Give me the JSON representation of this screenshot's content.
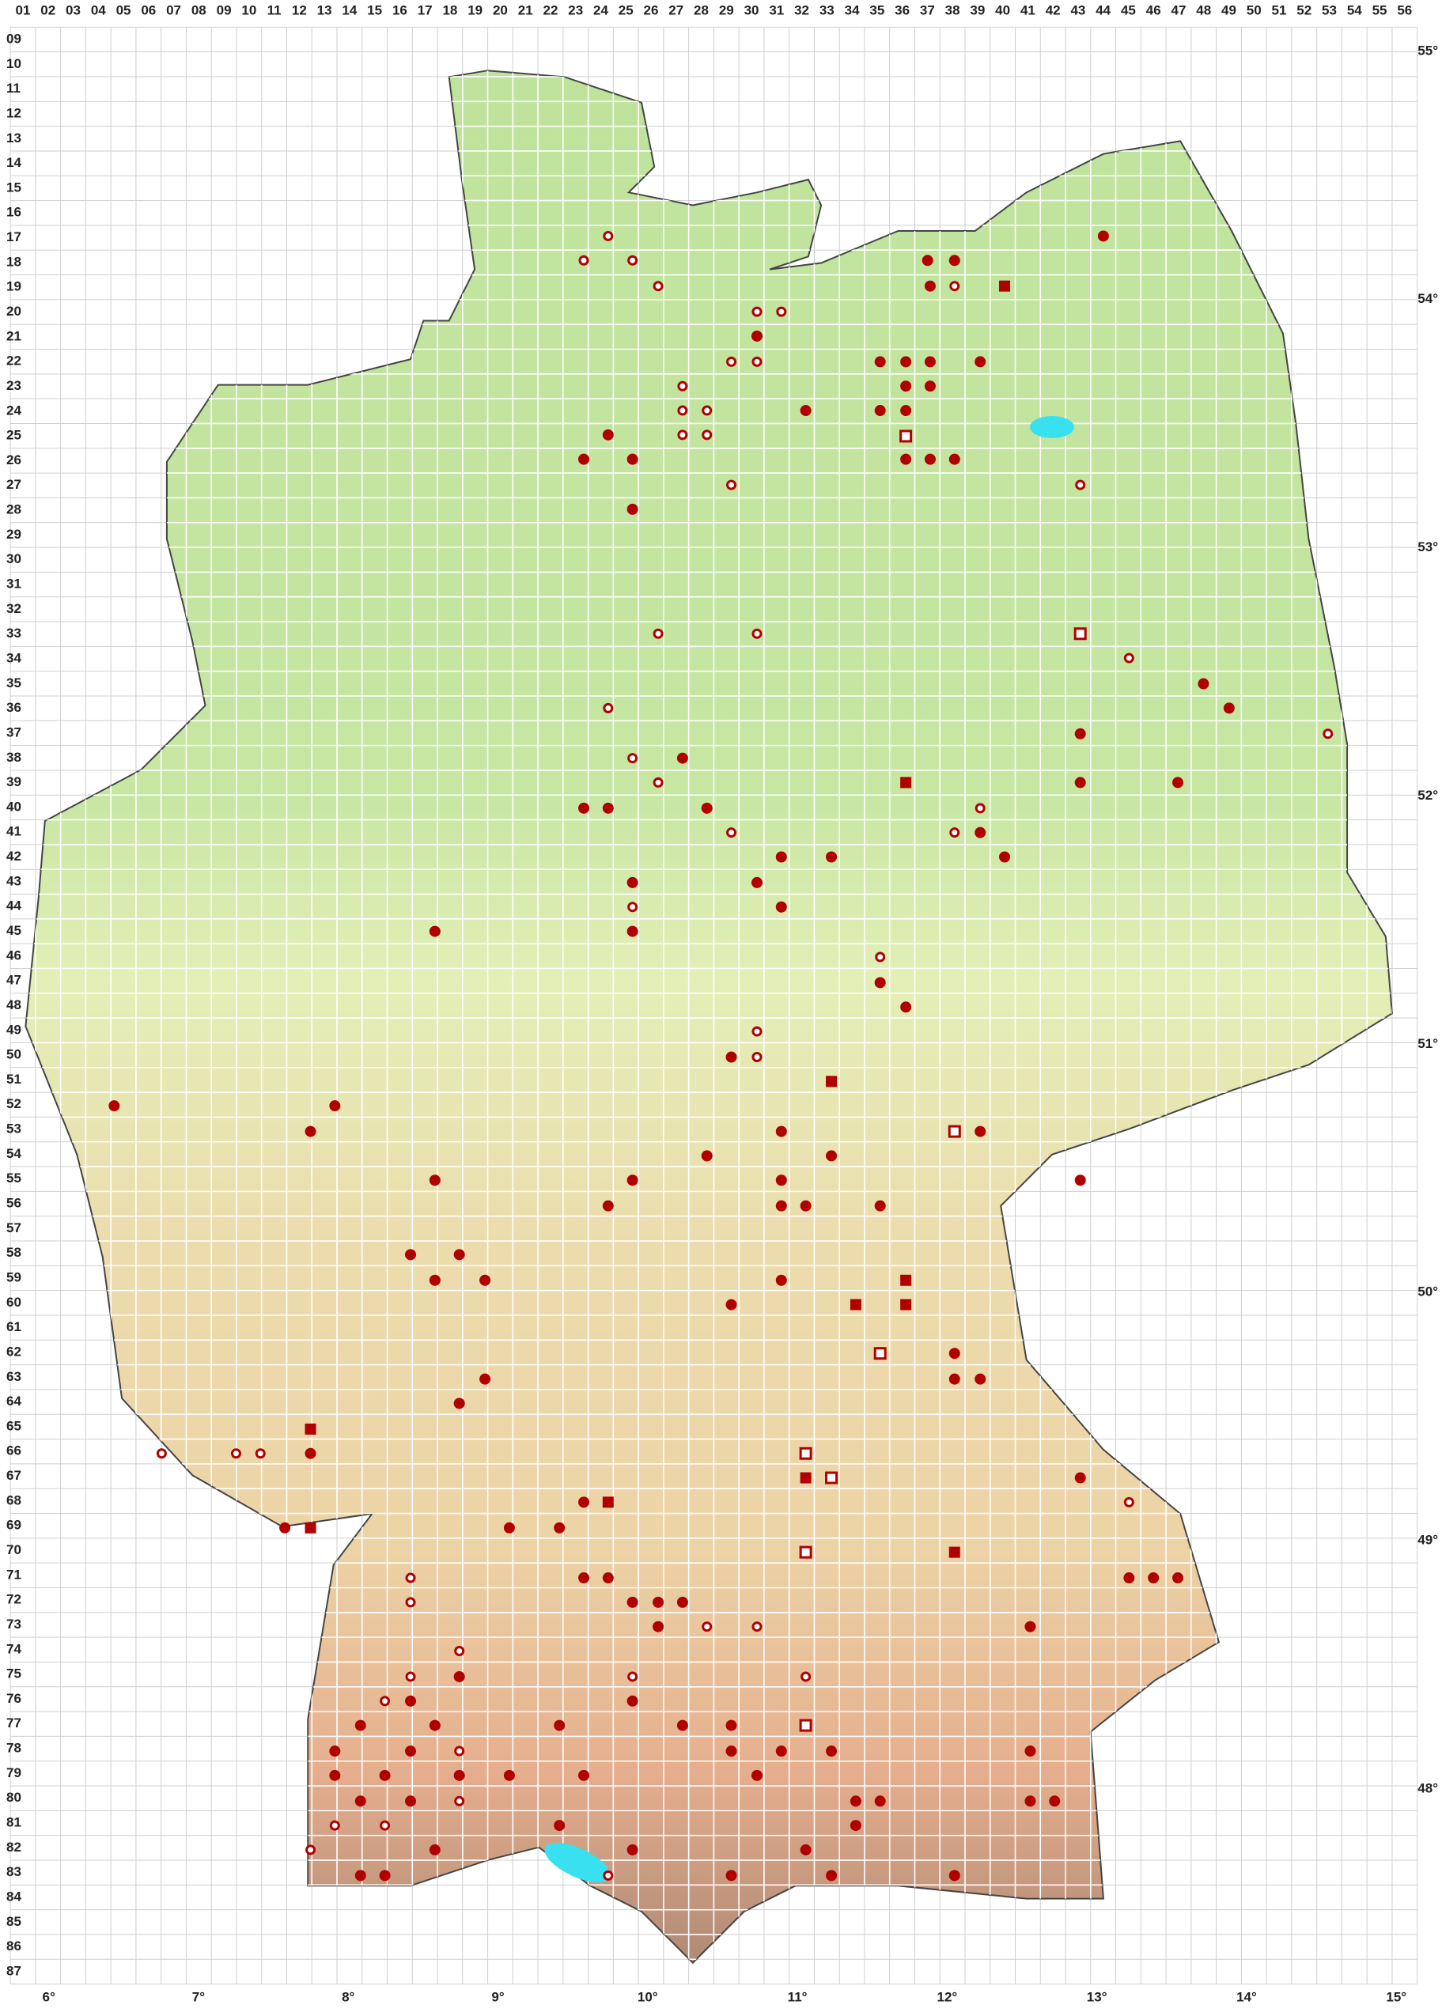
{
  "columns": [
    "01",
    "02",
    "03",
    "04",
    "05",
    "06",
    "07",
    "08",
    "09",
    "10",
    "11",
    "12",
    "13",
    "14",
    "15",
    "16",
    "17",
    "18",
    "19",
    "20",
    "21",
    "22",
    "23",
    "24",
    "25",
    "26",
    "27",
    "28",
    "29",
    "30",
    "31",
    "32",
    "33",
    "34",
    "35",
    "36",
    "37",
    "38",
    "39",
    "40",
    "41",
    "42",
    "43",
    "44",
    "45",
    "46",
    "47",
    "48",
    "49",
    "50",
    "51",
    "52",
    "53",
    "54",
    "55",
    "56"
  ],
  "rows": [
    "09",
    "10",
    "11",
    "12",
    "13",
    "14",
    "15",
    "16",
    "17",
    "18",
    "19",
    "20",
    "21",
    "22",
    "23",
    "24",
    "25",
    "26",
    "27",
    "28",
    "29",
    "30",
    "31",
    "32",
    "33",
    "34",
    "35",
    "36",
    "37",
    "38",
    "39",
    "40",
    "41",
    "42",
    "43",
    "44",
    "45",
    "46",
    "47",
    "48",
    "49",
    "50",
    "51",
    "52",
    "53",
    "54",
    "55",
    "56",
    "57",
    "58",
    "59",
    "60",
    "61",
    "62",
    "63",
    "64",
    "65",
    "66",
    "67",
    "68",
    "69",
    "70",
    "71",
    "72",
    "73",
    "74",
    "75",
    "76",
    "77",
    "78",
    "79",
    "80",
    "81",
    "82",
    "83",
    "84",
    "85",
    "86",
    "87"
  ],
  "longitudes": [
    "6°",
    "7°",
    "8°",
    "9°",
    "10°",
    "11°",
    "12°",
    "13°",
    "14°",
    "15°"
  ],
  "latitudes": [
    "55°",
    "54°",
    "53°",
    "52°",
    "51°",
    "50°",
    "49°",
    "48°"
  ]
}
